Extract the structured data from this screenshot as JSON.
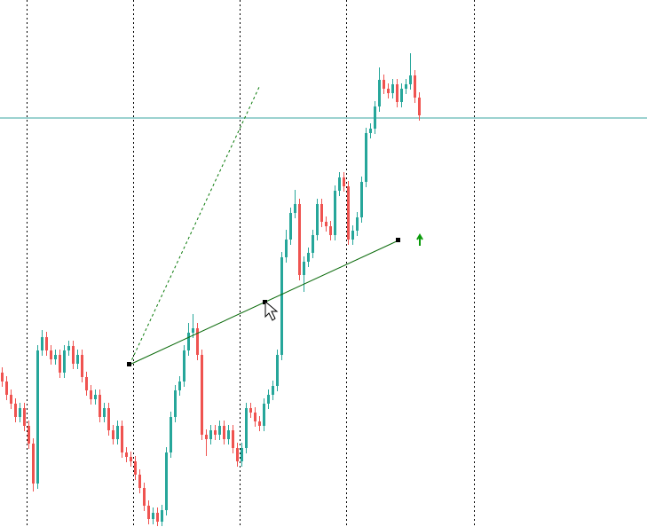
{
  "chart_data": {
    "type": "candlestick",
    "open": [
      174,
      164,
      149,
      139,
      124,
      134,
      114,
      94,
      49,
      199,
      214,
      199,
      189,
      194,
      174,
      199,
      204,
      184,
      194,
      169,
      154,
      144,
      149,
      124,
      134,
      109,
      99,
      114,
      84,
      79,
      74,
      59,
      44,
      24,
      9,
      16,
      6,
      19,
      84,
      124,
      154,
      164,
      199,
      219,
      224,
      194,
      104,
      99,
      109,
      104,
      114,
      99,
      109,
      89,
      74,
      89,
      134,
      129,
      119,
      114,
      139,
      149,
      159,
      194,
      304,
      324,
      354,
      364,
      284,
      299,
      309,
      329,
      364,
      344,
      339,
      329,
      379,
      394,
      384,
      324,
      334,
      349,
      389,
      444,
      449,
      474,
      504,
      494,
      489,
      499,
      479,
      494,
      499,
      509,
      484
    ],
    "high": [
      180,
      170,
      155,
      145,
      140,
      140,
      120,
      100,
      205,
      222,
      220,
      205,
      200,
      200,
      205,
      210,
      210,
      200,
      200,
      175,
      160,
      155,
      155,
      140,
      140,
      115,
      120,
      120,
      90,
      85,
      80,
      65,
      50,
      30,
      22,
      22,
      25,
      90,
      130,
      160,
      170,
      205,
      230,
      240,
      230,
      200,
      110,
      115,
      115,
      120,
      120,
      115,
      115,
      95,
      95,
      140,
      140,
      135,
      125,
      145,
      155,
      165,
      200,
      310,
      335,
      360,
      380,
      370,
      305,
      315,
      335,
      370,
      370,
      350,
      345,
      385,
      400,
      400,
      390,
      340,
      355,
      395,
      450,
      455,
      480,
      518,
      510,
      500,
      505,
      505,
      500,
      505,
      534,
      515,
      490
    ],
    "low": [
      158,
      143,
      133,
      118,
      118,
      108,
      88,
      40,
      43,
      193,
      193,
      183,
      183,
      168,
      168,
      193,
      178,
      178,
      163,
      148,
      138,
      138,
      118,
      118,
      103,
      93,
      93,
      78,
      73,
      68,
      53,
      38,
      18,
      3,
      3,
      1,
      1,
      13,
      78,
      118,
      148,
      158,
      193,
      213,
      188,
      98,
      80,
      93,
      98,
      98,
      93,
      93,
      83,
      68,
      68,
      83,
      123,
      113,
      108,
      108,
      133,
      143,
      153,
      188,
      298,
      318,
      348,
      278,
      265,
      293,
      303,
      323,
      338,
      333,
      323,
      323,
      373,
      378,
      318,
      318,
      328,
      343,
      383,
      438,
      443,
      468,
      488,
      483,
      483,
      473,
      473,
      488,
      493,
      478,
      458
    ],
    "close": [
      164,
      149,
      139,
      124,
      134,
      114,
      94,
      49,
      199,
      214,
      199,
      189,
      194,
      174,
      199,
      204,
      184,
      194,
      169,
      154,
      144,
      149,
      124,
      134,
      109,
      99,
      114,
      84,
      79,
      74,
      59,
      44,
      24,
      9,
      16,
      6,
      19,
      84,
      124,
      154,
      164,
      199,
      219,
      224,
      194,
      104,
      99,
      109,
      104,
      114,
      99,
      109,
      89,
      74,
      89,
      134,
      129,
      119,
      114,
      139,
      149,
      159,
      194,
      304,
      324,
      354,
      364,
      284,
      299,
      309,
      329,
      364,
      344,
      339,
      329,
      379,
      394,
      384,
      324,
      334,
      349,
      389,
      444,
      449,
      474,
      504,
      494,
      489,
      499,
      479,
      494,
      499,
      509,
      484,
      464
    ],
    "ylim": [
      0,
      594
    ],
    "hline": 461,
    "up_color": "#26a69a",
    "down_color": "#ef5350",
    "hline_color": "#3aa6a0"
  }
}
